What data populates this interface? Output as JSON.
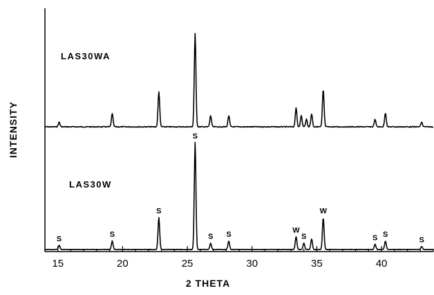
{
  "chart_data": {
    "type": "line",
    "xlabel": "2 THETA",
    "ylabel": "INTENSITY",
    "xlim": [
      14,
      44
    ],
    "xticks": [
      15,
      20,
      25,
      30,
      35,
      40
    ],
    "series": [
      {
        "name": "LAS30WA",
        "peaks": [
          {
            "x": 15.1,
            "h": 0.05
          },
          {
            "x": 19.2,
            "h": 0.14
          },
          {
            "x": 22.8,
            "h": 0.38
          },
          {
            "x": 25.6,
            "h": 1.0
          },
          {
            "x": 26.8,
            "h": 0.12
          },
          {
            "x": 28.2,
            "h": 0.12
          },
          {
            "x": 33.4,
            "h": 0.2
          },
          {
            "x": 33.8,
            "h": 0.12
          },
          {
            "x": 34.2,
            "h": 0.08
          },
          {
            "x": 34.6,
            "h": 0.14
          },
          {
            "x": 35.5,
            "h": 0.4
          },
          {
            "x": 39.5,
            "h": 0.08
          },
          {
            "x": 40.3,
            "h": 0.15
          },
          {
            "x": 43.1,
            "h": 0.05
          }
        ]
      },
      {
        "name": "LAS30W",
        "peaks": [
          {
            "x": 15.1,
            "h": 0.04,
            "label": "S"
          },
          {
            "x": 19.2,
            "h": 0.08,
            "label": "S"
          },
          {
            "x": 22.8,
            "h": 0.3,
            "label": "S"
          },
          {
            "x": 25.6,
            "h": 1.0,
            "label": "S"
          },
          {
            "x": 26.8,
            "h": 0.06,
            "label": "S"
          },
          {
            "x": 28.2,
            "h": 0.08,
            "label": "S"
          },
          {
            "x": 33.4,
            "h": 0.12,
            "label": "W"
          },
          {
            "x": 34.0,
            "h": 0.06,
            "label": "S"
          },
          {
            "x": 34.6,
            "h": 0.1
          },
          {
            "x": 35.5,
            "h": 0.3,
            "label": "W"
          },
          {
            "x": 39.5,
            "h": 0.05,
            "label": "S"
          },
          {
            "x": 40.3,
            "h": 0.08,
            "label": "S"
          },
          {
            "x": 43.1,
            "h": 0.03,
            "label": "S"
          }
        ]
      }
    ]
  }
}
